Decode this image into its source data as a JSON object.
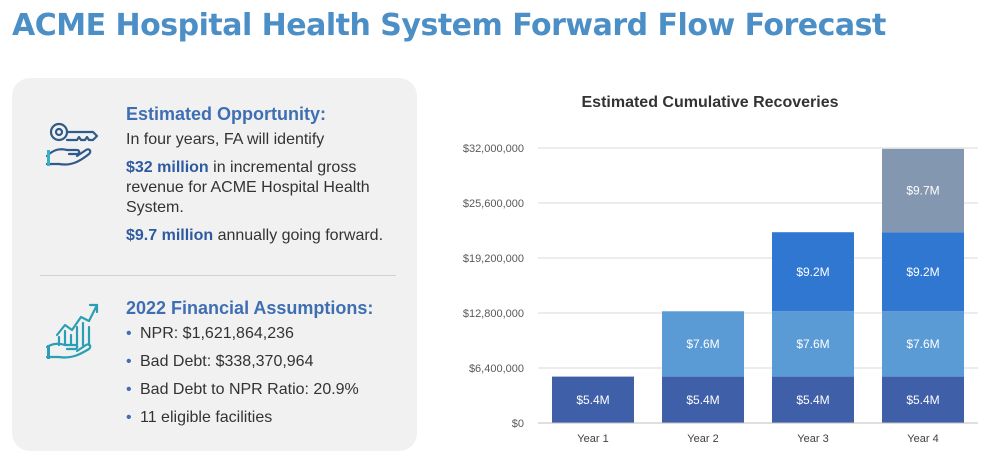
{
  "page": {
    "title": "ACME Hospital Health System Forward Flow Forecast"
  },
  "panel": {
    "opportunity": {
      "heading": "Estimated Opportunity:",
      "line1": "In four years, FA will identify",
      "line2_strong": "$32 million",
      "line2_rest": " in incremental gross revenue for ACME Hospital Health System.",
      "line3_strong": "$9.7 million",
      "line3_rest": " annually going forward.",
      "icon": "key-hand-icon"
    },
    "assumptions": {
      "heading": "2022 Financial Assumptions:",
      "bullet": "•",
      "items": [
        "NPR: $1,621,864,236",
        "Bad Debt: $338,370,964",
        "Bad Debt to NPR Ratio: 20.9%",
        "11 eligible facilities"
      ],
      "icon": "growth-chart-hand-icon"
    },
    "colors": {
      "heading": "#3f6fb2",
      "accent": "#2e5aa0"
    }
  },
  "chart_data": {
    "type": "bar",
    "stacked": true,
    "title": "Estimated Cumulative Recoveries",
    "xlabel": "",
    "ylabel": "",
    "categories": [
      "Year 1",
      "Year 2",
      "Year 3",
      "Year 4"
    ],
    "ylim": [
      0,
      32000000
    ],
    "yticks": [
      0,
      6400000,
      12800000,
      19200000,
      25600000,
      32000000
    ],
    "ytick_labels": [
      "$0",
      "$6,400,000",
      "$12,800,000",
      "$19,200,000",
      "$25,600,000",
      "$32,000,000"
    ],
    "grid": true,
    "series": [
      {
        "values": [
          5400000,
          5400000,
          5400000,
          5400000
        ],
        "labels": [
          "$5.4M",
          "$5.4M",
          "$5.4M",
          "$5.4M"
        ],
        "color": "#3f5fa8"
      },
      {
        "values": [
          0,
          7600000,
          7600000,
          7600000
        ],
        "labels": [
          "",
          "$7.6M",
          "$7.6M",
          "$7.6M"
        ],
        "color": "#5b9bd5"
      },
      {
        "values": [
          0,
          0,
          9200000,
          9200000
        ],
        "labels": [
          "",
          "",
          "$9.2M",
          "$9.2M"
        ],
        "color": "#2f77d1"
      },
      {
        "values": [
          0,
          0,
          0,
          9700000
        ],
        "labels": [
          "",
          "",
          "",
          "$9.7M"
        ],
        "color": "#8497b0"
      }
    ]
  }
}
